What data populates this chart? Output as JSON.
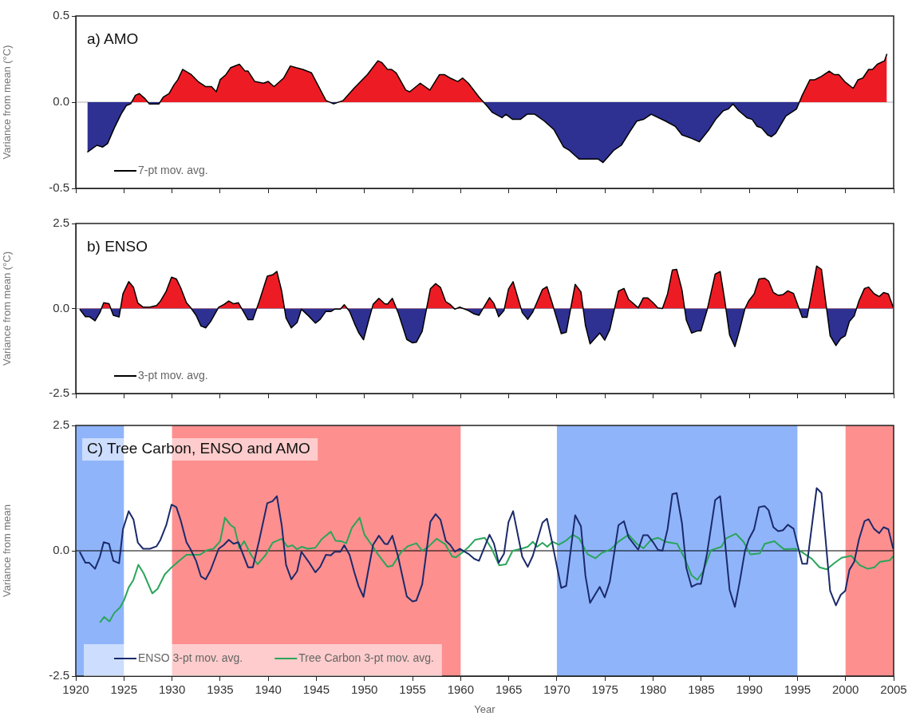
{
  "chart_data": [
    {
      "type": "area",
      "title": "a) AMO",
      "ylabel": "Variance from mean (°C)",
      "xlim": [
        1920,
        2005
      ],
      "xticks": [
        {
          "value": 1920,
          "label": null
        },
        {
          "value": 1925,
          "label": null
        },
        {
          "value": 1930,
          "label": null
        },
        {
          "value": 1935,
          "label": null
        },
        {
          "value": 1940,
          "label": null
        },
        {
          "value": 1945,
          "label": null
        },
        {
          "value": 1950,
          "label": null
        },
        {
          "value": 1955,
          "label": null
        },
        {
          "value": 1960,
          "label": null
        },
        {
          "value": 1965,
          "label": null
        },
        {
          "value": 1970,
          "label": null
        },
        {
          "value": 1975,
          "label": null
        },
        {
          "value": 1980,
          "label": null
        },
        {
          "value": 1985,
          "label": null
        },
        {
          "value": 1990,
          "label": null
        },
        {
          "value": 1995,
          "label": null
        },
        {
          "value": 2000,
          "label": null
        },
        {
          "value": 2005,
          "label": null
        }
      ],
      "ylim": [
        -0.5,
        0.5
      ],
      "yticks": [
        {
          "value": -0.5,
          "label": "-0.5"
        },
        {
          "value": 0,
          "label": "0.0"
        },
        {
          "value": 0.5,
          "label": "0.5"
        }
      ],
      "tick_labels": "y",
      "legend": "bottom left",
      "ref_lines": [
        {
          "axis": "y",
          "value": 0,
          "color": "#b0b0b0"
        }
      ],
      "series": [
        {
          "name": "7-pt mov. avg.",
          "color": "#000000",
          "colors": [
            "#2e3192",
            "#2e3192",
            "#2e3192",
            "#2e3192",
            "#2e3192",
            "#2e3192",
            "#2e3192",
            "#2e3192",
            "#ed1c24",
            "#ed1c24",
            "#ed1c24",
            "#2e3192",
            "#2e3192",
            "#ed1c24",
            "#ed1c24",
            "#ed1c24",
            "#ed1c24",
            "#ed1c24",
            "#ed1c24",
            "#ed1c24",
            "#ed1c24",
            "#ed1c24",
            "#ed1c24",
            "#ed1c24",
            "#ed1c24",
            "#ed1c24",
            "#ed1c24",
            "#ed1c24",
            "#ed1c24",
            "#ed1c24",
            "#ed1c24",
            "#ed1c24",
            "#ed1c24",
            "#ed1c24",
            "#ed1c24",
            "#ed1c24",
            "#ed1c24",
            "#ed1c24",
            "#ed1c24",
            "#ed1c24",
            "#2e3192",
            "#ed1c24",
            "#ed1c24",
            "#ed1c24",
            "#ed1c24",
            "#ed1c24",
            "#ed1c24",
            "#ed1c24",
            "#ed1c24",
            "#ed1c24",
            "#ed1c24",
            "#ed1c24",
            "#ed1c24",
            "#ed1c24",
            "#ed1c24",
            "#ed1c24",
            "#ed1c24",
            "#ed1c24",
            "#ed1c24",
            "#ed1c24",
            "#2e3192",
            "#2e3192",
            "#2e3192",
            "#2e3192",
            "#2e3192",
            "#2e3192",
            "#2e3192",
            "#2e3192",
            "#2e3192",
            "#2e3192",
            "#2e3192",
            "#2e3192",
            "#2e3192",
            "#2e3192",
            "#2e3192",
            "#2e3192",
            "#2e3192",
            "#2e3192",
            "#2e3192",
            "#2e3192",
            "#2e3192",
            "#2e3192",
            "#2e3192",
            "#2e3192",
            "#2e3192",
            "#2e3192",
            "#2e3192",
            "#2e3192",
            "#2e3192",
            "#2e3192",
            "#2e3192",
            "#2e3192",
            "#2e3192",
            "#2e3192",
            "#2e3192",
            "#2e3192",
            "#2e3192",
            "#2e3192",
            "#2e3192",
            "#2e3192",
            "#2e3192",
            "#2e3192",
            "#ed1c24",
            "#ed1c24",
            "#ed1c24",
            "#ed1c24",
            "#ed1c24",
            "#ed1c24",
            "#ed1c24",
            "#ed1c24",
            "#ed1c24",
            "#ed1c24",
            "#ed1c24",
            "#ed1c24",
            "#ed1c24",
            "#ed1c24",
            "#ed1c24",
            "#ed1c24"
          ],
          "x": [
            1921.2,
            1922.2,
            1922.8,
            1923.3,
            1924.0,
            1924.7,
            1925.25,
            1925.7,
            1926.2,
            1926.6,
            1927.2,
            1927.65,
            1928.65,
            1929.1,
            1929.7,
            1930.2,
            1930.6,
            1931.1,
            1932.0,
            1932.7,
            1933.5,
            1934.1,
            1934.6,
            1935.0,
            1935.6,
            1936.1,
            1937.0,
            1937.6,
            1937.9,
            1938.6,
            1939.5,
            1940.0,
            1940.6,
            1941.0,
            1941.6,
            1942.3,
            1942.9,
            1943.6,
            1944.5,
            1946.0,
            1946.8,
            1947.8,
            1948.9,
            1950.3,
            1951.4,
            1951.8,
            1952.4,
            1952.8,
            1953.3,
            1954.3,
            1954.7,
            1955.8,
            1956.8,
            1957.8,
            1958.3,
            1958.9,
            1959.7,
            1960.2,
            1960.8,
            1961.9,
            1962.7,
            1963.3,
            1964.3,
            1964.7,
            1965.4,
            1966.2,
            1966.9,
            1967.7,
            1968.7,
            1969.7,
            1970.7,
            1971.3,
            1972.3,
            1973.3,
            1974.3,
            1974.8,
            1975.9,
            1976.7,
            1977.6,
            1978.3,
            1979.0,
            1979.8,
            1981.3,
            1982.3,
            1983.0,
            1984.0,
            1984.8,
            1985.8,
            1986.5,
            1987.3,
            1987.8,
            1988.3,
            1988.9,
            1989.75,
            1990.3,
            1990.8,
            1991.3,
            1991.9,
            1992.3,
            1992.75,
            1993.8,
            1994.9,
            1995.5,
            1996.3,
            1996.8,
            1997.5,
            1998.3,
            1998.8,
            1999.3,
            1999.9,
            2000.8,
            2001.3,
            2001.8,
            2002.4,
            2002.8,
            2003.3,
            2004.05,
            2004.3
          ],
          "values": [
            -0.29,
            -0.25,
            -0.26,
            -0.24,
            -0.15,
            -0.07,
            -0.02,
            -0.01,
            0.04,
            0.05,
            0.02,
            -0.01,
            -0.01,
            0.03,
            0.05,
            0.1,
            0.13,
            0.19,
            0.16,
            0.12,
            0.09,
            0.09,
            0.06,
            0.13,
            0.16,
            0.2,
            0.22,
            0.18,
            0.18,
            0.12,
            0.11,
            0.12,
            0.09,
            0.11,
            0.14,
            0.21,
            0.2,
            0.19,
            0.17,
            0.01,
            -0.01,
            0.01,
            0.08,
            0.16,
            0.24,
            0.23,
            0.19,
            0.19,
            0.17,
            0.07,
            0.06,
            0.11,
            0.07,
            0.16,
            0.16,
            0.14,
            0.12,
            0.14,
            0.11,
            0.03,
            -0.02,
            -0.06,
            -0.09,
            -0.07,
            -0.1,
            -0.1,
            -0.07,
            -0.07,
            -0.11,
            -0.16,
            -0.26,
            -0.28,
            -0.33,
            -0.33,
            -0.33,
            -0.35,
            -0.28,
            -0.25,
            -0.17,
            -0.11,
            -0.1,
            -0.07,
            -0.11,
            -0.14,
            -0.19,
            -0.21,
            -0.23,
            -0.16,
            -0.1,
            -0.05,
            -0.04,
            -0.01,
            -0.05,
            -0.09,
            -0.1,
            -0.14,
            -0.15,
            -0.19,
            -0.2,
            -0.18,
            -0.08,
            -0.04,
            0.04,
            0.13,
            0.13,
            0.15,
            0.18,
            0.16,
            0.16,
            0.12,
            0.08,
            0.13,
            0.14,
            0.19,
            0.19,
            0.22,
            0.24,
            0.28
          ]
        }
      ]
    },
    {
      "type": "area",
      "title": "b) ENSO",
      "ylabel": "Variance from mean (°C)",
      "xlim": [
        1920,
        2005
      ],
      "xticks": [
        {
          "value": 1920,
          "label": null
        },
        {
          "value": 1925,
          "label": null
        },
        {
          "value": 1930,
          "label": null
        },
        {
          "value": 1935,
          "label": null
        },
        {
          "value": 1940,
          "label": null
        },
        {
          "value": 1945,
          "label": null
        },
        {
          "value": 1950,
          "label": null
        },
        {
          "value": 1955,
          "label": null
        },
        {
          "value": 1960,
          "label": null
        },
        {
          "value": 1965,
          "label": null
        },
        {
          "value": 1970,
          "label": null
        },
        {
          "value": 1975,
          "label": null
        },
        {
          "value": 1980,
          "label": null
        },
        {
          "value": 1985,
          "label": null
        },
        {
          "value": 1990,
          "label": null
        },
        {
          "value": 1995,
          "label": null
        },
        {
          "value": 2000,
          "label": null
        },
        {
          "value": 2005,
          "label": null
        }
      ],
      "ylim": [
        -2.5,
        2.5
      ],
      "yticks": [
        {
          "value": -2.5,
          "label": "-2.5"
        },
        {
          "value": 0,
          "label": "0.0"
        },
        {
          "value": 2.5,
          "label": "2.5"
        }
      ],
      "tick_labels": "y",
      "legend": "bottom left",
      "ref_lines": [
        {
          "axis": "y",
          "value": 0,
          "color": "#b0b0b0"
        }
      ],
      "series": [
        {
          "name": "3-pt mov. avg.",
          "color": "#000000",
          "colors": [
            "#2e3192",
            "#2e3192",
            "#2e3192",
            "#2e3192",
            "#2e3192",
            "#ed1c24",
            "#ed1c24",
            "#2e3192",
            "#2e3192",
            "#ed1c24",
            "#ed1c24",
            "#ed1c24",
            "#ed1c24",
            "#ed1c24",
            "#ed1c24",
            "#ed1c24",
            "#ed1c24",
            "#ed1c24",
            "#ed1c24",
            "#ed1c24",
            "#ed1c24",
            "#ed1c24",
            "#ed1c24",
            "#2e3192",
            "#2e3192",
            "#2e3192",
            "#2e3192",
            "#ed1c24",
            "#ed1c24",
            "#ed1c24",
            "#ed1c24",
            "#ed1c24",
            "#2e3192",
            "#2e3192",
            "#2e3192",
            "#ed1c24",
            "#ed1c24",
            "#ed1c24",
            "#ed1c24",
            "#ed1c24",
            "#2e3192",
            "#2e3192",
            "#2e3192",
            "#2e3192",
            "#2e3192",
            "#2e3192",
            "#2e3192",
            "#2e3192",
            "#2e3192",
            "#2e3192",
            "#2e3192",
            "#ed1c24",
            "#2e3192",
            "#2e3192",
            "#2e3192",
            "#2e3192",
            "#2e3192",
            "#ed1c24",
            "#ed1c24",
            "#ed1c24",
            "#ed1c24",
            "#ed1c24",
            "#2e3192",
            "#2e3192",
            "#2e3192",
            "#2e3192",
            "#2e3192",
            "#ed1c24",
            "#ed1c24",
            "#ed1c24",
            "#ed1c24",
            "#ed1c24",
            "#2e3192",
            "#ed1c24",
            "#2e3192",
            "#2e3192",
            "#2e3192",
            "#ed1c24",
            "#ed1c24",
            "#2e3192",
            "#2e3192",
            "#ed1c24",
            "#ed1c24",
            "#2e3192",
            "#2e3192",
            "#2e3192",
            "#ed1c24",
            "#ed1c24",
            "#ed1c24",
            "#2e3192",
            "#2e3192",
            "#ed1c24",
            "#ed1c24",
            "#2e3192",
            "#2e3192",
            "#2e3192",
            "#2e3192",
            "#2e3192",
            "#ed1c24",
            "#ed1c24",
            "#ed1c24",
            "#ed1c24",
            "#ed1c24",
            "#ed1c24",
            "#ed1c24",
            "#ed1c24",
            "#ed1c24",
            "#ed1c24",
            "#ed1c24",
            "#ed1c24",
            "#ed1c24",
            "#2e3192",
            "#2e3192",
            "#2e3192",
            "#2e3192",
            "#2e3192",
            "#ed1c24",
            "#ed1c24",
            "#ed1c24",
            "#2e3192",
            "#2e3192",
            "#2e3192",
            "#ed1c24",
            "#ed1c24",
            "#ed1c24",
            "#ed1c24",
            "#ed1c24",
            "#ed1c24",
            "#ed1c24",
            "#ed1c24",
            "#ed1c24",
            "#ed1c24",
            "#ed1c24",
            "#2e3192",
            "#2e3192",
            "#ed1c24",
            "#ed1c24",
            "#2e3192",
            "#2e3192",
            "#2e3192",
            "#2e3192",
            "#2e3192",
            "#2e3192",
            "#ed1c24",
            "#ed1c24",
            "#ed1c24",
            "#ed1c24",
            "#ed1c24",
            "#ed1c24",
            "#ed1c24",
            "#ed1c24"
          ],
          "x": [
            1920.4,
            1921.0,
            1921.4,
            1922.0,
            1922.5,
            1922.9,
            1923.45,
            1923.9,
            1924.5,
            1924.9,
            1925.5,
            1926.0,
            1926.45,
            1927.0,
            1927.7,
            1928.4,
            1928.8,
            1929.4,
            1929.95,
            1930.45,
            1930.9,
            1931.5,
            1931.9,
            1932.5,
            1933.0,
            1933.5,
            1934.0,
            1934.85,
            1935.4,
            1935.9,
            1936.4,
            1936.9,
            1937.4,
            1937.9,
            1938.4,
            1939.05,
            1939.9,
            1940.45,
            1940.9,
            1941.4,
            1941.85,
            1942.4,
            1943.0,
            1943.45,
            1944.2,
            1944.9,
            1945.4,
            1946.0,
            1946.5,
            1946.9,
            1947.5,
            1947.9,
            1948.45,
            1948.95,
            1949.4,
            1949.9,
            1950.4,
            1950.9,
            1951.5,
            1952.1,
            1952.4,
            1952.9,
            1953.5,
            1954.4,
            1955.0,
            1955.4,
            1956.0,
            1956.85,
            1957.4,
            1957.9,
            1958.45,
            1958.9,
            1959.4,
            1959.9,
            1960.8,
            1961.4,
            1961.9,
            1963.0,
            1963.45,
            1963.95,
            1964.5,
            1964.97,
            1965.45,
            1966.4,
            1966.97,
            1967.5,
            1968.5,
            1968.97,
            1969.5,
            1970.45,
            1970.97,
            1971.9,
            1972.5,
            1972.97,
            1973.45,
            1974.45,
            1974.97,
            1975.5,
            1976.4,
            1976.97,
            1977.45,
            1978.45,
            1978.97,
            1979.45,
            1980.0,
            1980.5,
            1980.97,
            1981.5,
            1982.0,
            1982.45,
            1983.0,
            1983.45,
            1984.0,
            1984.6,
            1984.97,
            1985.6,
            1986.45,
            1986.97,
            1987.45,
            1987.95,
            1988.5,
            1989.0,
            1989.55,
            1989.95,
            1990.5,
            1991.0,
            1991.6,
            1992.0,
            1992.5,
            1993.0,
            1993.5,
            1994.0,
            1994.6,
            1995.5,
            1996.0,
            1997.0,
            1997.5,
            1998.4,
            1999.0,
            1999.5,
            1999.97,
            2000.4,
            2000.9,
            2001.4,
            2001.97,
            2002.4,
            2002.95,
            2003.5,
            2003.95,
            2004.45,
            2004.95
          ],
          "values": [
            -0.02,
            -0.24,
            -0.24,
            -0.36,
            -0.12,
            0.17,
            0.14,
            -0.2,
            -0.25,
            0.43,
            0.79,
            0.62,
            0.16,
            0.04,
            0.04,
            0.09,
            0.22,
            0.51,
            0.92,
            0.87,
            0.61,
            0.17,
            0.04,
            -0.2,
            -0.51,
            -0.57,
            -0.39,
            0.04,
            0.12,
            0.22,
            0.14,
            0.17,
            -0.08,
            -0.33,
            -0.33,
            0.2,
            0.95,
            0.99,
            1.09,
            0.51,
            -0.28,
            -0.57,
            -0.41,
            -0.02,
            -0.22,
            -0.43,
            -0.32,
            -0.08,
            -0.09,
            -0.02,
            -0.02,
            0.11,
            -0.08,
            -0.43,
            -0.71,
            -0.92,
            -0.39,
            0.12,
            0.3,
            0.14,
            0.13,
            0.3,
            -0.12,
            -0.91,
            -1.01,
            -0.99,
            -0.67,
            0.58,
            0.73,
            0.62,
            0.2,
            0.12,
            -0.02,
            0.04,
            -0.06,
            -0.16,
            -0.2,
            0.32,
            0.15,
            -0.24,
            -0.06,
            0.57,
            0.79,
            -0.12,
            -0.32,
            -0.1,
            0.56,
            0.64,
            0.17,
            -0.74,
            -0.7,
            0.71,
            0.49,
            -0.5,
            -1.04,
            -0.72,
            -0.93,
            -0.62,
            0.51,
            0.59,
            0.27,
            0.02,
            0.31,
            0.31,
            0.17,
            0.02,
            0.0,
            0.43,
            1.13,
            1.15,
            0.55,
            -0.34,
            -0.72,
            -0.66,
            -0.66,
            -0.06,
            1.01,
            1.09,
            0.23,
            -0.78,
            -1.12,
            -0.62,
            0.0,
            0.23,
            0.43,
            0.87,
            0.89,
            0.81,
            0.47,
            0.39,
            0.41,
            0.52,
            0.44,
            -0.26,
            -0.26,
            1.25,
            1.15,
            -0.8,
            -1.09,
            -0.88,
            -0.8,
            -0.38,
            -0.22,
            0.23,
            0.59,
            0.63,
            0.44,
            0.35,
            0.47,
            0.43,
            0.04
          ]
        }
      ]
    },
    {
      "type": "line",
      "title": "C) Tree Carbon, ENSO and AMO",
      "xlabel": "Year",
      "ylabel": "Variance from mean",
      "xlim": [
        1920,
        2005
      ],
      "xticks": [
        1920,
        1925,
        1930,
        1935,
        1940,
        1945,
        1950,
        1955,
        1960,
        1965,
        1970,
        1975,
        1980,
        1985,
        1990,
        1995,
        2000,
        2005
      ],
      "ylim": [
        -2.5,
        2.5
      ],
      "yticks": [
        {
          "value": -2.5,
          "label": "-2.5"
        },
        {
          "value": 0,
          "label": "0.0"
        },
        {
          "value": 2.5,
          "label": "2.5"
        }
      ],
      "legend": "bottom left",
      "ref_lines": [
        {
          "axis": "y",
          "value": 0,
          "color": "#000000"
        }
      ],
      "bands": [
        {
          "axis": "x",
          "from": 1920,
          "to": 1925,
          "color": "#8fb4fa"
        },
        {
          "axis": "x",
          "from": 1930,
          "to": 1960,
          "color": "#fd8f8f"
        },
        {
          "axis": "x",
          "from": 1970,
          "to": 1995,
          "color": "#8fb4fa"
        },
        {
          "axis": "x",
          "from": 2000,
          "to": 2005,
          "color": "#fd8f8f"
        }
      ],
      "series": [
        {
          "name": "ENSO 3-pt mov. avg.",
          "color": "#1b2a6b",
          "x": [
            1920.4,
            1921.0,
            1921.4,
            1922.0,
            1922.5,
            1922.9,
            1923.45,
            1923.9,
            1924.5,
            1924.9,
            1925.5,
            1926.0,
            1926.45,
            1927.0,
            1927.7,
            1928.4,
            1928.8,
            1929.4,
            1929.95,
            1930.45,
            1930.9,
            1931.5,
            1931.9,
            1932.5,
            1933.0,
            1933.5,
            1934.0,
            1934.85,
            1935.4,
            1935.9,
            1936.4,
            1936.9,
            1937.4,
            1937.9,
            1938.4,
            1939.05,
            1939.9,
            1940.45,
            1940.9,
            1941.4,
            1941.85,
            1942.4,
            1943.0,
            1943.45,
            1944.2,
            1944.9,
            1945.4,
            1946.0,
            1946.5,
            1946.9,
            1947.5,
            1947.9,
            1948.45,
            1948.95,
            1949.4,
            1949.9,
            1950.4,
            1950.9,
            1951.5,
            1952.1,
            1952.4,
            1952.9,
            1953.5,
            1954.4,
            1955.0,
            1955.4,
            1956.0,
            1956.85,
            1957.4,
            1957.9,
            1958.45,
            1958.9,
            1959.4,
            1959.9,
            1960.8,
            1961.4,
            1961.9,
            1963.0,
            1963.45,
            1963.95,
            1964.5,
            1964.97,
            1965.45,
            1966.4,
            1966.97,
            1967.5,
            1968.5,
            1968.97,
            1969.5,
            1970.45,
            1970.97,
            1971.9,
            1972.5,
            1972.97,
            1973.45,
            1974.45,
            1974.97,
            1975.5,
            1976.4,
            1976.97,
            1977.45,
            1978.45,
            1978.97,
            1979.45,
            1980.0,
            1980.5,
            1980.97,
            1981.5,
            1982.0,
            1982.45,
            1983.0,
            1983.45,
            1984.0,
            1984.6,
            1984.97,
            1985.6,
            1986.45,
            1986.97,
            1987.45,
            1987.95,
            1988.5,
            1989.0,
            1989.55,
            1989.95,
            1990.5,
            1991.0,
            1991.6,
            1992.0,
            1992.5,
            1993.0,
            1993.5,
            1994.0,
            1994.6,
            1995.5,
            1996.0,
            1997.0,
            1997.5,
            1998.4,
            1999.0,
            1999.5,
            1999.97,
            2000.4,
            2000.9,
            2001.4,
            2001.97,
            2002.4,
            2002.95,
            2003.5,
            2003.95,
            2004.45,
            2004.95
          ],
          "values": [
            -0.02,
            -0.24,
            -0.24,
            -0.36,
            -0.12,
            0.17,
            0.14,
            -0.2,
            -0.25,
            0.43,
            0.79,
            0.62,
            0.16,
            0.04,
            0.04,
            0.09,
            0.22,
            0.51,
            0.92,
            0.87,
            0.61,
            0.17,
            0.04,
            -0.2,
            -0.51,
            -0.57,
            -0.39,
            0.04,
            0.12,
            0.22,
            0.14,
            0.17,
            -0.08,
            -0.33,
            -0.33,
            0.2,
            0.95,
            0.99,
            1.09,
            0.51,
            -0.28,
            -0.57,
            -0.41,
            -0.02,
            -0.22,
            -0.43,
            -0.32,
            -0.08,
            -0.09,
            -0.02,
            -0.02,
            0.11,
            -0.08,
            -0.43,
            -0.71,
            -0.92,
            -0.39,
            0.12,
            0.3,
            0.14,
            0.13,
            0.3,
            -0.12,
            -0.91,
            -1.01,
            -0.99,
            -0.67,
            0.58,
            0.73,
            0.62,
            0.2,
            0.12,
            -0.02,
            0.04,
            -0.06,
            -0.16,
            -0.2,
            0.32,
            0.15,
            -0.24,
            -0.06,
            0.57,
            0.79,
            -0.12,
            -0.32,
            -0.1,
            0.56,
            0.64,
            0.17,
            -0.74,
            -0.7,
            0.71,
            0.49,
            -0.5,
            -1.04,
            -0.72,
            -0.93,
            -0.62,
            0.51,
            0.59,
            0.27,
            0.02,
            0.31,
            0.31,
            0.17,
            0.02,
            0.0,
            0.43,
            1.13,
            1.15,
            0.55,
            -0.34,
            -0.72,
            -0.66,
            -0.66,
            -0.06,
            1.01,
            1.09,
            0.23,
            -0.78,
            -1.12,
            -0.62,
            0.0,
            0.23,
            0.43,
            0.87,
            0.89,
            0.81,
            0.47,
            0.39,
            0.41,
            0.52,
            0.44,
            -0.26,
            -0.26,
            1.25,
            1.15,
            -0.8,
            -1.09,
            -0.88,
            -0.8,
            -0.38,
            -0.22,
            0.23,
            0.59,
            0.63,
            0.44,
            0.35,
            0.47,
            0.43,
            0.04
          ]
        },
        {
          "name": "Tree Carbon 3-pt mov. avg.",
          "color": "#2aa55a",
          "x": [
            1922.5,
            1922.95,
            1923.5,
            1924.0,
            1924.6,
            1925.05,
            1925.5,
            1925.97,
            1926.5,
            1927.05,
            1927.95,
            1928.5,
            1929.25,
            1929.8,
            1930.8,
            1931.5,
            1932.2,
            1932.9,
            1933.6,
            1934.3,
            1935.0,
            1935.5,
            1936.1,
            1936.5,
            1937.0,
            1937.5,
            1938.2,
            1938.9,
            1939.75,
            1940.45,
            1941.4,
            1942.0,
            1942.5,
            1942.97,
            1943.5,
            1944.1,
            1944.9,
            1945.6,
            1946.5,
            1947.0,
            1947.6,
            1948.1,
            1948.7,
            1949.5,
            1950.0,
            1950.7,
            1951.4,
            1952.4,
            1952.9,
            1953.8,
            1954.5,
            1955.4,
            1956.0,
            1956.7,
            1957.5,
            1958.4,
            1959.1,
            1959.5,
            1960.2,
            1960.8,
            1961.5,
            1962.5,
            1963.2,
            1964.0,
            1964.7,
            1965.4,
            1966.3,
            1966.97,
            1967.5,
            1967.95,
            1968.5,
            1969.0,
            1969.55,
            1970.2,
            1971.0,
            1971.65,
            1972.3,
            1973.2,
            1974.0,
            1974.6,
            1975.6,
            1976.45,
            1977.45,
            1978.3,
            1979.0,
            1979.8,
            1980.5,
            1981.3,
            1982.5,
            1983.3,
            1984.0,
            1984.6,
            1985.2,
            1986.0,
            1987.1,
            1987.6,
            1988.6,
            1989.4,
            1990.1,
            1991.1,
            1991.6,
            1992.6,
            1993.6,
            1994.8,
            1995.5,
            1996.5,
            1997.3,
            1998.05,
            1998.8,
            1999.6,
            2000.6,
            2001.5,
            2002.3,
            2003.0,
            2003.6,
            2004.6,
            2004.99
          ],
          "values": [
            -1.43,
            -1.32,
            -1.41,
            -1.24,
            -1.13,
            -0.97,
            -0.73,
            -0.59,
            -0.28,
            -0.45,
            -0.85,
            -0.76,
            -0.47,
            -0.36,
            -0.19,
            -0.08,
            -0.08,
            -0.08,
            0.01,
            0.04,
            0.19,
            0.66,
            0.51,
            0.46,
            0.05,
            0.19,
            -0.08,
            -0.27,
            -0.08,
            0.16,
            0.24,
            0.08,
            0.11,
            0.03,
            0.08,
            0.04,
            0.06,
            0.24,
            0.38,
            0.2,
            0.19,
            0.15,
            0.46,
            0.66,
            0.32,
            0.13,
            -0.07,
            -0.32,
            -0.3,
            -0.03,
            0.09,
            0.15,
            0.0,
            0.09,
            0.24,
            0.13,
            -0.11,
            -0.13,
            -0.03,
            0.07,
            0.22,
            0.26,
            0.05,
            -0.29,
            -0.27,
            0.0,
            0.04,
            0.08,
            0.18,
            0.08,
            0.16,
            0.08,
            0.18,
            0.12,
            0.21,
            0.32,
            0.25,
            -0.07,
            -0.15,
            -0.05,
            0.03,
            0.19,
            0.32,
            0.14,
            0.05,
            0.22,
            0.26,
            0.18,
            0.14,
            -0.16,
            -0.49,
            -0.58,
            -0.41,
            0.01,
            0.08,
            0.25,
            0.34,
            0.18,
            -0.07,
            -0.05,
            0.14,
            0.19,
            0.03,
            0.04,
            -0.03,
            -0.16,
            -0.33,
            -0.37,
            -0.25,
            -0.14,
            -0.1,
            -0.29,
            -0.36,
            -0.33,
            -0.22,
            -0.19,
            -0.1
          ]
        }
      ]
    }
  ]
}
